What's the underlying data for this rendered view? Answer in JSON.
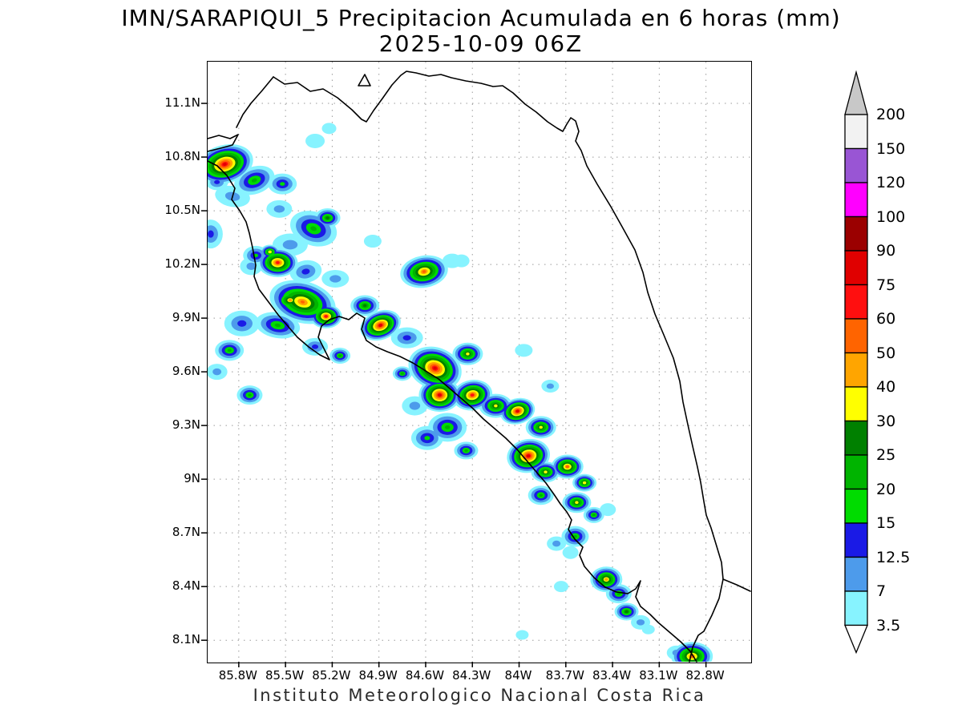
{
  "title": {
    "line1": "IMN/SARAPIQUI_5 Precipitacion Acumulada en 6 horas (mm)",
    "line2": "2025-10-09 06Z"
  },
  "footer": "Instituto Meteorologico Nacional Costa Rica",
  "axes": {
    "y_tick_labels": [
      "11.1N",
      "10.8N",
      "10.5N",
      "10.2N",
      "9.9N",
      "9.6N",
      "9.3N",
      "9N",
      "8.7N",
      "8.4N",
      "8.1N"
    ],
    "x_tick_labels": [
      "85.8W",
      "85.5W",
      "85.2W",
      "84.9W",
      "84.6W",
      "84.3W",
      "84W",
      "83.7W",
      "83.4W",
      "83.1W",
      "82.8W"
    ]
  },
  "colorbar": {
    "tick_labels": [
      "200",
      "150",
      "120",
      "100",
      "90",
      "75",
      "60",
      "50",
      "40",
      "30",
      "25",
      "20",
      "15",
      "12.5",
      "7",
      "3.5"
    ],
    "segment_colors_top_down": [
      "#F2F2F2",
      "#9955D4",
      "#FF00FF",
      "#9B0000",
      "#E00000",
      "#FF0F0F",
      "#FF6400",
      "#FFA500",
      "#FFFF00",
      "#008000",
      "#00B400",
      "#00DC00",
      "#1A1AE6",
      "#4D9BEB",
      "#87F3FF"
    ],
    "over_arrow_color": "#C8C8C8",
    "under_arrow_color": "#FFFFFF"
  },
  "map": {
    "frame_color": "#000000",
    "grid_color": "#9a9a9a",
    "coastline_color": "#000000",
    "coastline_paths": [
      "M 82,19 L 96,28 L 112,26 L 128,37 L 144,34 L 162,45 L 180,60 L 192,72 L 198,75 L 207,61 L 218,46 L 230,29 L 241,17 L 248,12 L 260,14 L 276,18 L 291,16 L 304,20 L 322,24 L 341,27 L 356,31 L 368,30 L 381,39 L 396,53 L 410,63 L 424,75 L 436,83 L 443,87 L 448,78 L 453,70 L 459,74 L 463,87 L 459,99 L 466,111 L 473,130 L 486,153 L 503,181 L 517,206 L 533,235 L 543,263 L 549,288 L 558,315 L 569,341 L 581,370 L 589,399 L 593,425 L 599,453 L 605,480 L 611,506 L 615,525 L 619,549 L 622,566 L 628,582 L 635,605 L 641,625 L 643,646 L 638,670 L 629,691 L 619,711 L 612,716 L 605,731 L 601,749",
      "M 643,646 L 660,653 L 677,661",
      "M 0,124 L 12,130 L 24,142 L 34,158 L 30,172 L 40,186 L 48,200 L 52,214 L 56,232 L 60,254 L 58,268 L 64,284 L 76,300 L 88,316 L 100,330 L 112,344 L 126,356 L 140,366 L 152,372 L 146,360 L 138,344 L 142,330 L 152,322 L 164,318 L 176,322 L 186,314 L 196,320 L 192,334 L 198,348 L 210,356 L 224,362 L 240,368 L 256,376 L 272,386 L 288,396 L 302,408 L 316,420 L 330,432 L 344,446 L 358,458 L 372,470 L 386,484 L 398,498 L 410,512 L 422,526 L 432,540 L 440,552 L 448,562 L 454,572 L 450,584 L 458,596 L 468,606 L 464,616 L 470,630 L 482,644 L 496,656 L 510,662 L 524,664 L 534,658 L 540,648 L 534,668 L 540,680 L 552,690 L 562,700 L 576,712 L 590,724 L 602,736 L 610,749",
      "M 0,96 L 14,92 L 28,96 L 38,91 L 31,104 L 16,108 L 0,112",
      "M 82,19 L 68,36 L 54,52 L 44,66 L 36,82",
      "M 188,30 L 196,16 L 203,30 Z"
    ]
  },
  "chart_data": {
    "type": "heatmap",
    "title": "IMN/SARAPIQUI_5 Precipitacion Acumulada en 6 horas (mm)",
    "valid_time": "2025-10-09 06Z",
    "units": "mm",
    "lon_left_w": 86.0,
    "lon_right_w": 82.515,
    "lat_top_n": 11.333,
    "lat_bottom_n": 7.98,
    "thresholds_mm": [
      3.5,
      7,
      12.5,
      15,
      20,
      25,
      30,
      40,
      50,
      60,
      75,
      90,
      100,
      120,
      150,
      200
    ],
    "cell_fields": [
      "lon_w",
      "lat_n",
      "peak_mm",
      "rx_px",
      "ry_px",
      "rot_deg"
    ],
    "cells": [
      [
        85.89,
        10.76,
        80,
        36,
        24,
        -15
      ],
      [
        85.7,
        10.67,
        22,
        26,
        17,
        -20
      ],
      [
        85.52,
        10.65,
        17,
        18,
        13,
        0
      ],
      [
        85.84,
        10.58,
        9,
        22,
        13,
        10
      ],
      [
        85.31,
        10.89,
        5,
        12,
        9,
        0
      ],
      [
        85.22,
        10.96,
        5,
        9,
        7,
        0
      ],
      [
        85.54,
        10.51,
        9,
        16,
        11,
        0
      ],
      [
        85.94,
        10.66,
        13,
        14,
        10,
        0
      ],
      [
        85.32,
        10.4,
        22,
        30,
        21,
        20
      ],
      [
        85.23,
        10.46,
        28,
        16,
        12,
        0
      ],
      [
        85.47,
        10.31,
        9,
        22,
        14,
        0
      ],
      [
        85.98,
        10.37,
        13,
        15,
        18,
        0
      ],
      [
        85.69,
        10.25,
        17,
        16,
        12,
        0
      ],
      [
        85.6,
        10.27,
        35,
        12,
        9,
        0
      ],
      [
        85.55,
        10.21,
        65,
        25,
        18,
        0
      ],
      [
        85.72,
        10.19,
        9,
        14,
        11,
        0
      ],
      [
        85.37,
        10.16,
        13,
        20,
        14,
        -10
      ],
      [
        85.18,
        10.12,
        9,
        17,
        11,
        0
      ],
      [
        84.94,
        10.33,
        5,
        11,
        8,
        0
      ],
      [
        84.61,
        10.16,
        55,
        30,
        20,
        -10
      ],
      [
        84.43,
        10.22,
        5,
        12,
        9,
        0
      ],
      [
        84.37,
        10.22,
        5,
        10,
        8,
        0
      ],
      [
        85.39,
        9.99,
        55,
        42,
        26,
        15
      ],
      [
        85.24,
        9.91,
        65,
        20,
        15,
        0
      ],
      [
        85.55,
        9.86,
        22,
        28,
        16,
        10
      ],
      [
        85.47,
        10.0,
        45,
        20,
        14,
        0
      ],
      [
        84.89,
        9.86,
        80,
        26,
        18,
        -20
      ],
      [
        84.72,
        9.79,
        13,
        20,
        13,
        0
      ],
      [
        85.78,
        9.87,
        13,
        22,
        16,
        0
      ],
      [
        85.86,
        9.72,
        22,
        18,
        13,
        0
      ],
      [
        85.94,
        9.6,
        9,
        13,
        10,
        0
      ],
      [
        85.31,
        9.74,
        13,
        16,
        11,
        0
      ],
      [
        85.15,
        9.69,
        22,
        13,
        10,
        0
      ],
      [
        85.73,
        9.47,
        22,
        16,
        12,
        0
      ],
      [
        84.75,
        9.59,
        22,
        12,
        9,
        0
      ],
      [
        84.99,
        9.97,
        28,
        18,
        13,
        0
      ],
      [
        84.54,
        9.62,
        80,
        34,
        26,
        20
      ],
      [
        84.51,
        9.47,
        80,
        26,
        21,
        0
      ],
      [
        84.33,
        9.7,
        35,
        19,
        14,
        0
      ],
      [
        84.3,
        9.47,
        65,
        25,
        19,
        -10
      ],
      [
        84.15,
        9.41,
        35,
        21,
        15,
        0
      ],
      [
        84.01,
        9.38,
        80,
        22,
        16,
        -15
      ],
      [
        83.86,
        9.29,
        35,
        19,
        14,
        0
      ],
      [
        84.46,
        9.29,
        22,
        24,
        18,
        0
      ],
      [
        84.59,
        9.23,
        17,
        20,
        15,
        0
      ],
      [
        84.34,
        9.16,
        22,
        15,
        11,
        0
      ],
      [
        83.97,
        9.72,
        5,
        11,
        8,
        0
      ],
      [
        83.8,
        9.52,
        9,
        11,
        8,
        0
      ],
      [
        84.67,
        9.41,
        9,
        16,
        12,
        0
      ],
      [
        83.94,
        9.13,
        80,
        27,
        21,
        -10
      ],
      [
        83.83,
        9.04,
        35,
        18,
        13,
        0
      ],
      [
        83.69,
        9.07,
        55,
        20,
        15,
        0
      ],
      [
        83.58,
        8.98,
        35,
        15,
        11,
        0
      ],
      [
        83.86,
        8.91,
        22,
        16,
        12,
        0
      ],
      [
        83.63,
        8.87,
        35,
        18,
        13,
        0
      ],
      [
        83.52,
        8.8,
        22,
        13,
        10,
        0
      ],
      [
        83.43,
        8.83,
        5,
        10,
        8,
        0
      ],
      [
        83.64,
        8.68,
        22,
        17,
        13,
        0
      ],
      [
        83.76,
        8.64,
        9,
        12,
        9,
        0
      ],
      [
        83.67,
        8.59,
        5,
        10,
        8,
        0
      ],
      [
        83.44,
        8.44,
        45,
        20,
        16,
        0
      ],
      [
        83.36,
        8.36,
        22,
        16,
        12,
        0
      ],
      [
        83.31,
        8.26,
        28,
        15,
        11,
        0
      ],
      [
        83.22,
        8.2,
        9,
        12,
        9,
        0
      ],
      [
        83.73,
        8.4,
        5,
        9,
        7,
        0
      ],
      [
        83.98,
        8.13,
        5,
        8,
        6,
        0
      ],
      [
        83.17,
        8.16,
        5,
        8,
        6,
        0
      ],
      [
        82.89,
        8.01,
        55,
        26,
        18,
        0
      ],
      [
        82.99,
        8.03,
        9,
        12,
        9,
        0
      ]
    ]
  }
}
